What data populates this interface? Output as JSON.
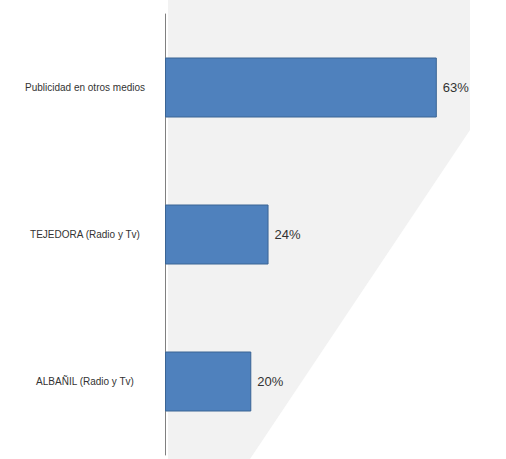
{
  "chart_data": {
    "type": "bar",
    "orientation": "horizontal",
    "categories": [
      "Publicidad en otros medios",
      "TEJEDORA (Radio y Tv)",
      "ALBAÑIL (Radio y Tv)"
    ],
    "values": [
      63,
      24,
      20
    ],
    "value_labels": [
      "63%",
      "24%",
      "20%"
    ],
    "color": "#4f81bd",
    "data_labels": true,
    "tick_labels": "y",
    "grid": false
  }
}
